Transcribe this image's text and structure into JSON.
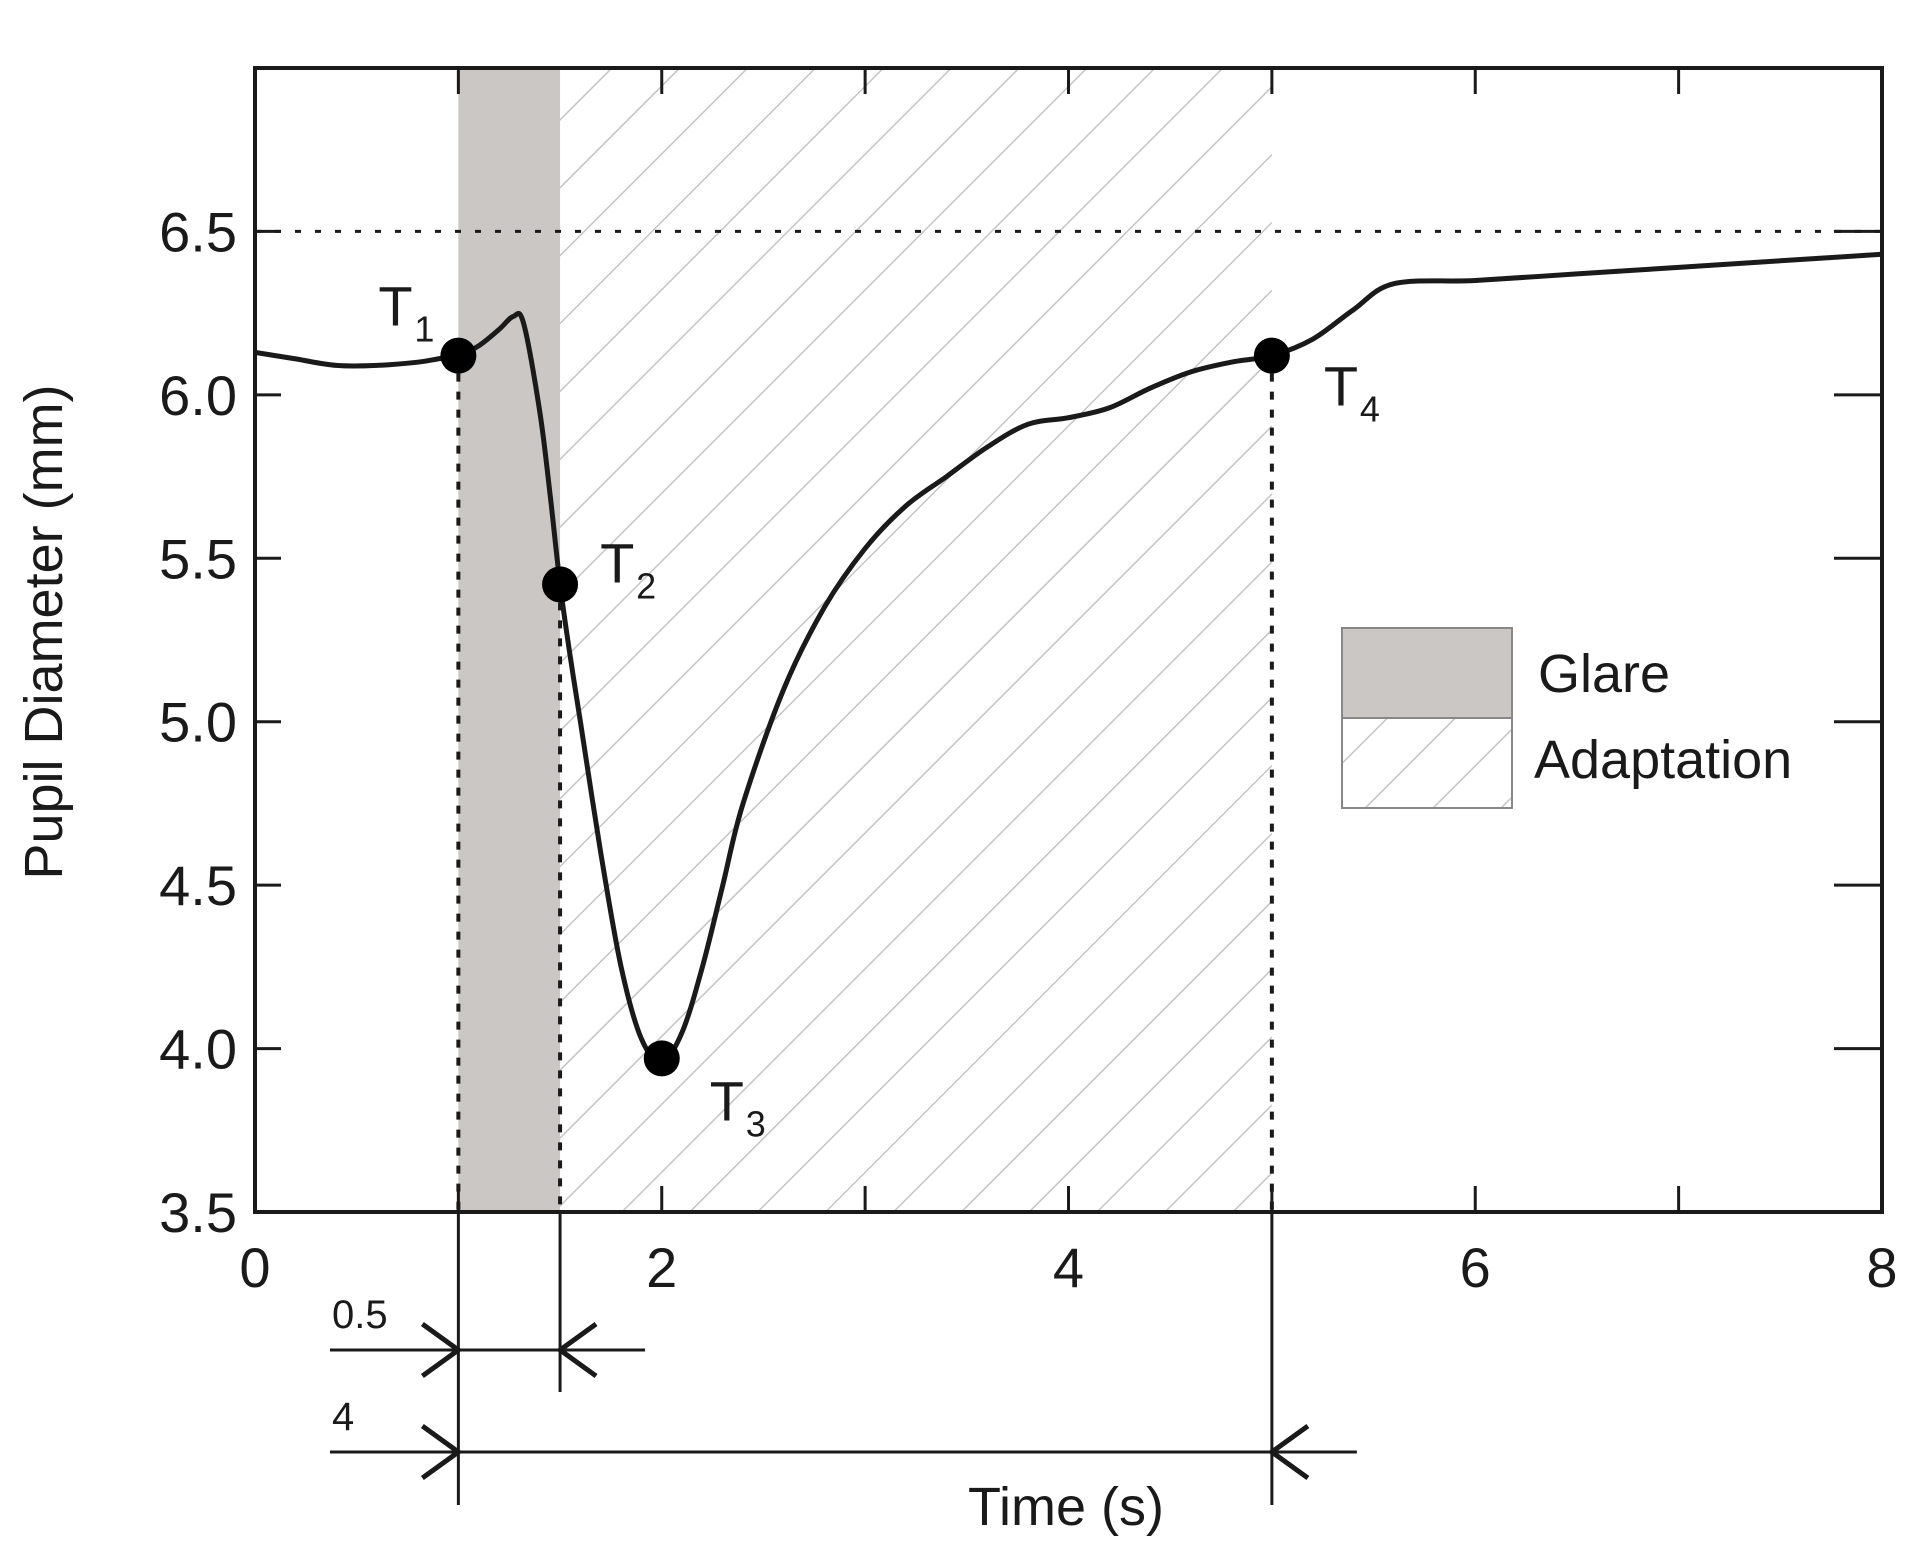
{
  "chart_data": {
    "type": "line",
    "xlabel": "Time (s)",
    "ylabel": "Pupil Diameter (mm)",
    "xlim": [
      0,
      8
    ],
    "ylim": [
      3.5,
      7.0
    ],
    "x_ticks": [
      0,
      2,
      4,
      6,
      8
    ],
    "x_tick_labels": [
      "0",
      "2",
      "4",
      "6",
      "8"
    ],
    "y_ticks": [
      3.5,
      4.0,
      4.5,
      5.0,
      5.5,
      6.0,
      6.5
    ],
    "y_tick_labels": [
      "3.5",
      "4.0",
      "4.5",
      "5.0",
      "5.5",
      "6.0",
      "6.5"
    ],
    "reference_line": {
      "y": 6.5,
      "style": "dotted"
    },
    "grid": false,
    "legend_position": "right",
    "legend": [
      {
        "label": "Glare",
        "fill": "solid-gray",
        "color": "#cbc7c4"
      },
      {
        "label": "Adaptation",
        "fill": "diagonal-hatch",
        "color": "#bdbdbd"
      }
    ],
    "regions": [
      {
        "name": "Glare",
        "x_start": 1.0,
        "x_end": 1.5
      },
      {
        "name": "Adaptation",
        "x_start": 1.5,
        "x_end": 5.0
      }
    ],
    "series": [
      {
        "x": [
          0,
          0.2,
          0.4,
          0.6,
          0.8,
          0.9,
          1.0,
          1.1,
          1.2,
          1.27,
          1.32,
          1.4,
          1.45,
          1.5,
          1.55,
          1.6,
          1.7,
          1.8,
          1.9,
          2.0,
          2.1,
          2.2,
          2.3,
          2.4,
          2.6,
          2.8,
          3.0,
          3.2,
          3.4,
          3.6,
          3.8,
          4.0,
          4.2,
          4.4,
          4.6,
          4.8,
          5.0,
          5.2,
          5.4,
          5.6,
          6.0,
          6.5,
          7.0,
          7.5,
          8.0
        ],
        "y": [
          6.13,
          6.11,
          6.09,
          6.09,
          6.1,
          6.11,
          6.12,
          6.15,
          6.2,
          6.24,
          6.22,
          5.95,
          5.7,
          5.42,
          5.2,
          5.0,
          4.6,
          4.25,
          4.03,
          3.96,
          4.05,
          4.25,
          4.5,
          4.75,
          5.1,
          5.35,
          5.53,
          5.66,
          5.75,
          5.84,
          5.91,
          5.93,
          5.96,
          6.02,
          6.07,
          6.1,
          6.12,
          6.17,
          6.26,
          6.34,
          6.35,
          6.37,
          6.39,
          6.41,
          6.43
        ],
        "color": "#1a1a1a"
      }
    ],
    "points": [
      {
        "label": "T",
        "sub": "1",
        "x": 1.0,
        "y": 6.12
      },
      {
        "label": "T",
        "sub": "2",
        "x": 1.5,
        "y": 5.42
      },
      {
        "label": "T",
        "sub": "3",
        "x": 2.0,
        "y": 3.97
      },
      {
        "label": "T",
        "sub": "4",
        "x": 5.0,
        "y": 6.12
      }
    ],
    "dimensions": [
      {
        "label": "0.5",
        "x_start": 1.0,
        "x_end": 1.5
      },
      {
        "label": "4",
        "x_start": 1.0,
        "x_end": 5.0
      }
    ]
  }
}
